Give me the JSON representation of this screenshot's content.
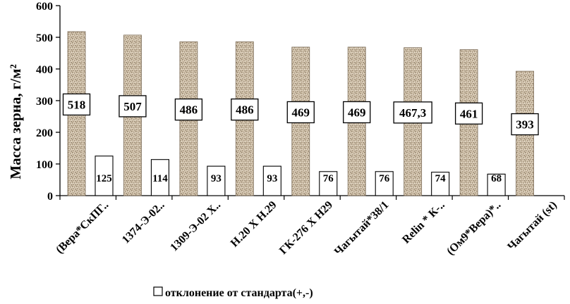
{
  "chart_data": {
    "type": "bar",
    "title": "",
    "xlabel": "",
    "ylabel": "Масса зерна, г/м²",
    "ylim": [
      0,
      600
    ],
    "yticks": [
      0,
      100,
      200,
      300,
      400,
      500,
      600
    ],
    "grid": false,
    "legend_position": "bottom",
    "categories": [
      "(Вера*СкПГ..",
      "1374-Э-02..",
      "1309-Э-02 Х..",
      "Н.20 Х Н.29",
      "ГК-276 Х Н29",
      "Чагытай*38/1",
      "Relin * К-..",
      "(Ом9*Вера)*..",
      "Чагытай (st)"
    ],
    "series": [
      {
        "values": [
          518,
          507,
          486,
          486,
          469,
          469,
          467.3,
          461,
          393
        ],
        "data_labels": [
          "518",
          "507",
          "486",
          "486",
          "469",
          "469",
          "467,3",
          "461",
          "393"
        ],
        "color": "#c8b9a2",
        "pattern": "speckled"
      },
      {
        "name": "отклонение от стандарта(+,-)",
        "values": [
          125,
          114,
          93,
          93,
          76,
          76,
          74,
          68,
          null
        ],
        "data_labels": [
          "125",
          "114",
          "93",
          "93",
          "76",
          "76",
          "74",
          "68",
          ""
        ],
        "color": "#ffffff"
      }
    ]
  }
}
